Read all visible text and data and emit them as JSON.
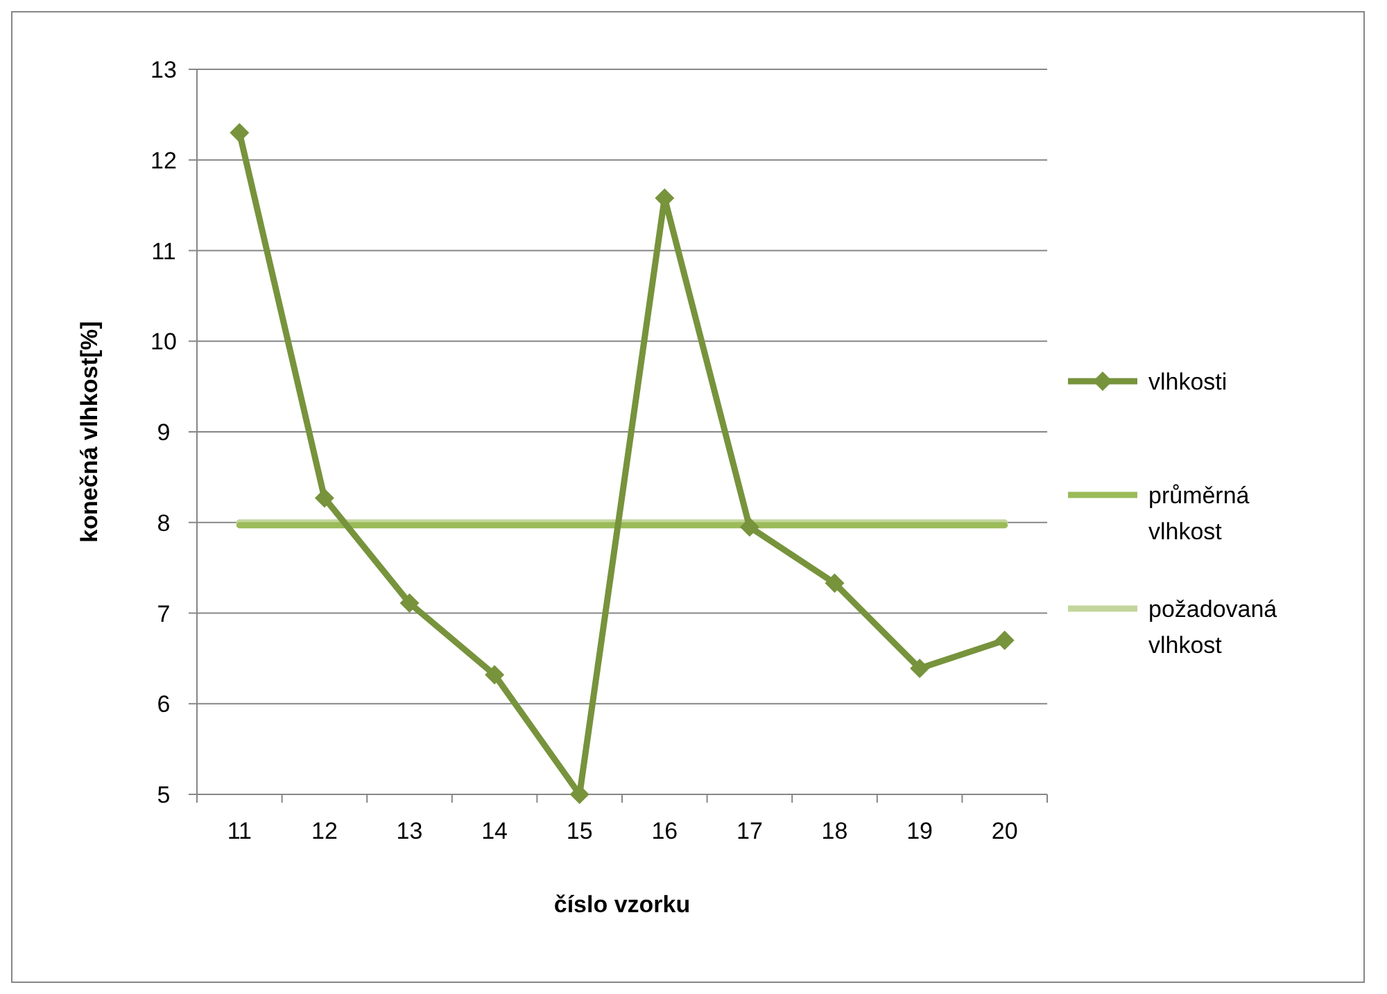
{
  "chart_data": {
    "type": "line",
    "xlabel": "číslo vzorku",
    "ylabel": "konečná vlhkost[%]",
    "categories": [
      "11",
      "12",
      "13",
      "14",
      "15",
      "16",
      "17",
      "18",
      "19",
      "20"
    ],
    "series": [
      {
        "name": "vlhkosti",
        "color": "#77933c",
        "marker": "diamond",
        "values": [
          12.3,
          8.27,
          7.11,
          6.32,
          5.0,
          11.58,
          7.95,
          7.33,
          6.39,
          6.7
        ]
      },
      {
        "name": "průměrná vlhkost",
        "color": "#9bbb59",
        "marker": "none",
        "values": [
          7.97,
          7.97,
          7.97,
          7.97,
          7.97,
          7.97,
          7.97,
          7.97,
          7.97,
          7.97
        ]
      },
      {
        "name": "požadovaná vlhkost",
        "color": "#c3d69b",
        "marker": "none",
        "values": [
          8,
          8,
          8,
          8,
          8,
          8,
          8,
          8,
          8,
          8
        ]
      }
    ],
    "ylim": [
      5,
      13
    ],
    "yticks": [
      5,
      6,
      7,
      8,
      9,
      10,
      11,
      12,
      13
    ],
    "grid": "y",
    "legend": "right"
  }
}
